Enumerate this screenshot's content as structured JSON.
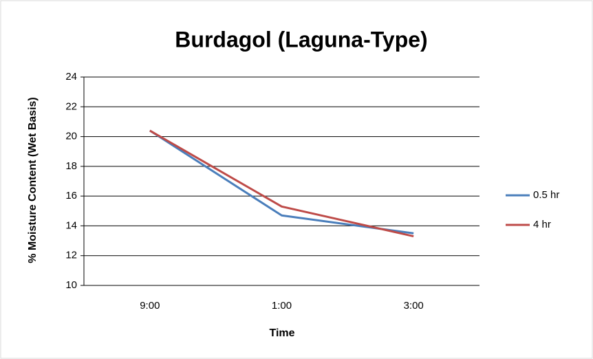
{
  "chart_data": {
    "type": "line",
    "title": "Burdagol (Laguna-Type)",
    "x_label": "Time",
    "y_label": "% Moisture Content (Wet Basis)",
    "categories": [
      "9:00",
      "1:00",
      "3:00"
    ],
    "series": [
      {
        "name": "0.5 hr",
        "color": "#4a7ebb",
        "values": [
          20.4,
          14.7,
          13.5
        ]
      },
      {
        "name": "4 hr",
        "color": "#be4b48",
        "values": [
          20.4,
          15.3,
          13.3
        ]
      }
    ],
    "ylim": [
      10,
      24
    ],
    "yticks": [
      10,
      12,
      14,
      16,
      18,
      20,
      22,
      24
    ],
    "grid": true,
    "legend": "right"
  }
}
